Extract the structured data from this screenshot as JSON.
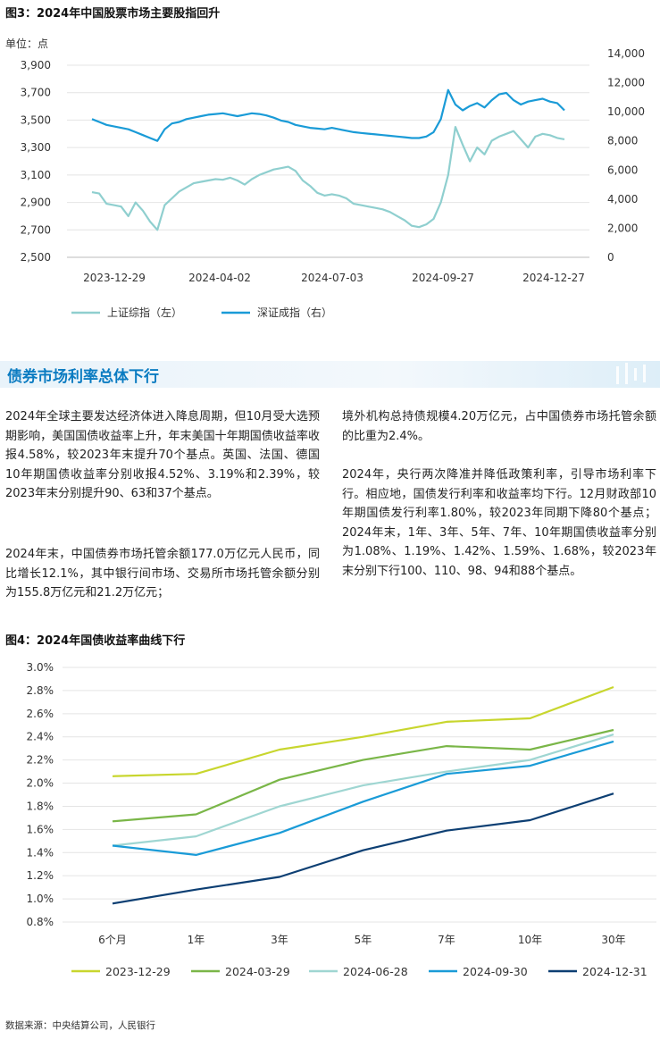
{
  "figure3": {
    "title": "图3：2024年中国股票市场主要股指回升",
    "unit_label": "单位：点",
    "chart_data": {
      "type": "line",
      "title": "图3：2024年中国股票市场主要股指回升",
      "x_ticks": [
        "2023-12-29",
        "2024-04-02",
        "2024-07-03",
        "2024-09-27",
        "2024-12-27"
      ],
      "left_axis": {
        "ticks": [
          "3,900",
          "3,700",
          "3,500",
          "3,300",
          "3,100",
          "2,900",
          "2,700",
          "2,500"
        ],
        "ylim": [
          2500,
          3900
        ]
      },
      "right_axis": {
        "ticks": [
          "14,000",
          "12,000",
          "10,000",
          "8,000",
          "6,000",
          "4,000",
          "2,000",
          "0"
        ],
        "ylim": [
          0,
          14000
        ]
      },
      "series": [
        {
          "name": "上证综指（左）",
          "axis": "left",
          "color": "#8fcfcf",
          "values": [
            2975,
            2965,
            2890,
            2880,
            2870,
            2800,
            2900,
            2840,
            2760,
            2700,
            2880,
            2930,
            2980,
            3010,
            3040,
            3050,
            3060,
            3070,
            3065,
            3080,
            3060,
            3030,
            3070,
            3100,
            3120,
            3140,
            3150,
            3160,
            3130,
            3060,
            3020,
            2970,
            2950,
            2960,
            2950,
            2930,
            2890,
            2880,
            2870,
            2860,
            2850,
            2830,
            2800,
            2770,
            2730,
            2720,
            2740,
            2780,
            2900,
            3100,
            3450,
            3320,
            3200,
            3300,
            3250,
            3350,
            3380,
            3400,
            3420,
            3360,
            3300,
            3380,
            3400,
            3390,
            3370,
            3360
          ]
        },
        {
          "name": "深证成指（右）",
          "axis": "right",
          "color": "#1a9bd7",
          "values": [
            9500,
            9300,
            9100,
            9000,
            8900,
            8800,
            8600,
            8400,
            8200,
            8000,
            8800,
            9200,
            9300,
            9500,
            9600,
            9700,
            9800,
            9850,
            9900,
            9800,
            9700,
            9800,
            9900,
            9850,
            9750,
            9600,
            9400,
            9300,
            9100,
            9000,
            8900,
            8850,
            8800,
            8900,
            8800,
            8700,
            8600,
            8550,
            8500,
            8450,
            8400,
            8350,
            8300,
            8250,
            8200,
            8200,
            8300,
            8600,
            9500,
            11500,
            10500,
            10100,
            10400,
            10600,
            10300,
            10800,
            11200,
            11300,
            10800,
            10500,
            10700,
            10800,
            10900,
            10700,
            10600,
            10100
          ]
        }
      ]
    }
  },
  "section": {
    "title": "债券市场利率总体下行"
  },
  "text": {
    "col1_p1": "2024年全球主要发达经济体进入降息周期，但10月受大选预期影响，美国国债收益率上升，年末美国十年期国债收益率收报4.58%，较2023年末提升70个基点。英国、法国、德国10年期国债收益率分别收报4.52%、3.19%和2.39%，较2023年末分别提升90、63和37个基点。",
    "col1_p2": "2024年末，中国债券市场托管余额177.0万亿元人民币，同比增长12.1%，其中银行间市场、交易所市场托管余额分别为155.8万亿元和21.2万亿元；",
    "col2_p1": "境外机构总持债规模4.20万亿元，占中国债券市场托管余额的比重为2.4%。",
    "col2_p2": "2024年，央行两次降准并降低政策利率，引导市场利率下行。相应地，国债发行利率和收益率均下行。12月财政部10年期国债发行利率1.80%，较2023年同期下降80个基点；2024年末，1年、3年、5年、7年、10年期国债收益率分别为1.08%、1.19%、1.42%、1.59%、1.68%，较2023年末分别下行100、110、98、94和88个基点。"
  },
  "figure4": {
    "title": "图4：2024年国债收益率曲线下行",
    "chart_data": {
      "type": "line",
      "title": "图4：2024年国债收益率曲线下行",
      "categories": [
        "6个月",
        "1年",
        "3年",
        "5年",
        "7年",
        "10年",
        "30年"
      ],
      "y_ticks": [
        "3.0%",
        "2.8%",
        "2.6%",
        "2.4%",
        "2.2%",
        "2.0%",
        "1.8%",
        "1.6%",
        "1.4%",
        "1.2%",
        "1.0%",
        "0.8%"
      ],
      "ylim": [
        0.8,
        3.0
      ],
      "series": [
        {
          "name": "2023-12-29",
          "color": "#c8d62e",
          "values": [
            2.06,
            2.08,
            2.29,
            2.4,
            2.53,
            2.56,
            2.83
          ]
        },
        {
          "name": "2024-03-29",
          "color": "#7ab648",
          "values": [
            1.67,
            1.73,
            2.03,
            2.2,
            2.32,
            2.29,
            2.46
          ]
        },
        {
          "name": "2024-06-28",
          "color": "#9fd6d2",
          "values": [
            1.46,
            1.54,
            1.8,
            1.98,
            2.1,
            2.2,
            2.42
          ]
        },
        {
          "name": "2024-09-30",
          "color": "#1a9bd7",
          "values": [
            1.46,
            1.38,
            1.57,
            1.84,
            2.08,
            2.15,
            2.36
          ]
        },
        {
          "name": "2024-12-31",
          "color": "#0d3f73",
          "values": [
            0.96,
            1.08,
            1.19,
            1.42,
            1.59,
            1.68,
            1.91
          ]
        }
      ]
    }
  },
  "source": "数据来源：中央结算公司，人民银行"
}
